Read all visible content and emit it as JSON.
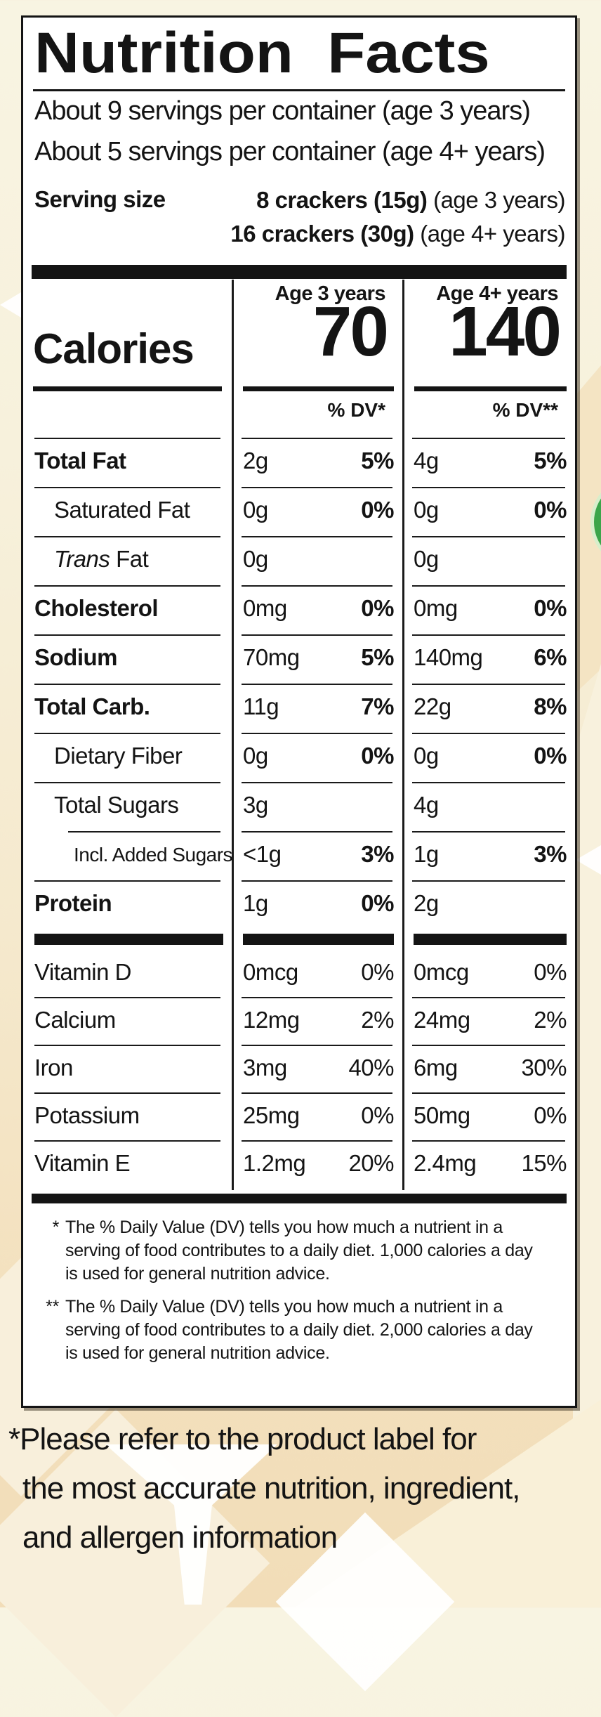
{
  "colors": {
    "ink": "#141414",
    "panel_bg": "#ffffff",
    "packaging_tan": "#f2ddb8",
    "packaging_cream": "#f8f4e2",
    "accent_green": "#3ba54a",
    "accent_green_rim": "#d8eecb"
  },
  "label": {
    "title": "Nutrition Facts",
    "servings_line1": "About 9 servings per container (age 3 years)",
    "servings_line2": "About 5 servings per container (age 4+ years)",
    "serving_size_label": "Serving size",
    "serving_size_1_bold": "8 crackers (15g)",
    "serving_size_1_note": " (age 3 years)",
    "serving_size_2_bold": "16 crackers (30g)",
    "serving_size_2_note": " (age 4+ years)",
    "col_header_age3": "Age 3 years",
    "col_header_age4": "Age 4+ years",
    "calories_label": "Calories",
    "calories_age3": "70",
    "calories_age4": "140",
    "dv_header_age3": "% DV*",
    "dv_header_age4": "% DV**",
    "nutrient_rows": [
      {
        "label": "Total Fat",
        "emphasis": "bold",
        "indent": 0,
        "a3_amt": "2g",
        "a3_dv": "5%",
        "a4_amt": "4g",
        "a4_dv": "5%"
      },
      {
        "label": "Saturated Fat",
        "emphasis": "plain",
        "indent": 1,
        "a3_amt": "0g",
        "a3_dv": "0%",
        "a4_amt": "0g",
        "a4_dv": "0%"
      },
      {
        "label": "Fat",
        "italic_prefix": "Trans",
        "emphasis": "plain",
        "indent": 1,
        "a3_amt": "0g",
        "a3_dv": "",
        "a4_amt": "0g",
        "a4_dv": ""
      },
      {
        "label": "Cholesterol",
        "emphasis": "bold",
        "indent": 0,
        "a3_amt": "0mg",
        "a3_dv": "0%",
        "a4_amt": "0mg",
        "a4_dv": "0%"
      },
      {
        "label": "Sodium",
        "emphasis": "bold",
        "indent": 0,
        "a3_amt": "70mg",
        "a3_dv": "5%",
        "a4_amt": "140mg",
        "a4_dv": "6%"
      },
      {
        "label": "Total Carb.",
        "emphasis": "bold",
        "indent": 0,
        "a3_amt": "11g",
        "a3_dv": "7%",
        "a4_amt": "22g",
        "a4_dv": "8%"
      },
      {
        "label": "Dietary Fiber",
        "emphasis": "plain",
        "indent": 1,
        "a3_amt": "0g",
        "a3_dv": "0%",
        "a4_amt": "0g",
        "a4_dv": "0%"
      },
      {
        "label": "Total Sugars",
        "emphasis": "plain",
        "indent": 1,
        "a3_amt": "3g",
        "a3_dv": "",
        "a4_amt": "4g",
        "a4_dv": ""
      },
      {
        "label": "Incl. Added Sugars",
        "emphasis": "plain",
        "indent": 2,
        "a3_amt": "<1g",
        "a3_dv": "3%",
        "a4_amt": "1g",
        "a4_dv": "3%"
      },
      {
        "label": "Protein",
        "emphasis": "bold",
        "indent": 0,
        "a3_amt": "1g",
        "a3_dv": "0%",
        "a4_amt": "2g",
        "a4_dv": ""
      }
    ],
    "vitamin_rows": [
      {
        "label": "Vitamin D",
        "a3_amt": "0mcg",
        "a3_dv": "0%",
        "a4_amt": "0mcg",
        "a4_dv": "0%"
      },
      {
        "label": "Calcium",
        "a3_amt": "12mg",
        "a3_dv": "2%",
        "a4_amt": "24mg",
        "a4_dv": "2%"
      },
      {
        "label": "Iron",
        "a3_amt": "3mg",
        "a3_dv": "40%",
        "a4_amt": "6mg",
        "a4_dv": "30%"
      },
      {
        "label": "Potassium",
        "a3_amt": "25mg",
        "a3_dv": "0%",
        "a4_amt": "50mg",
        "a4_dv": "0%"
      },
      {
        "label": "Vitamin E",
        "a3_amt": "1.2mg",
        "a3_dv": "20%",
        "a4_amt": "2.4mg",
        "a4_dv": "15%"
      }
    ],
    "footnote1_marker": "*",
    "footnote1": "The % Daily Value (DV) tells you how much a nutrient in a serving of food contributes to a daily diet. 1,000 calories a day is used for general nutrition advice.",
    "footnote2_marker": "**",
    "footnote2": "The % Daily Value (DV) tells you how much a nutrient in a serving of food contributes to a daily diet. 2,000 calories a day is used for general nutrition advice."
  },
  "disclaimer": {
    "line1": "*Please refer to the product label for",
    "line2": "the most accurate nutrition, ingredient,",
    "line3": "and allergen information"
  }
}
